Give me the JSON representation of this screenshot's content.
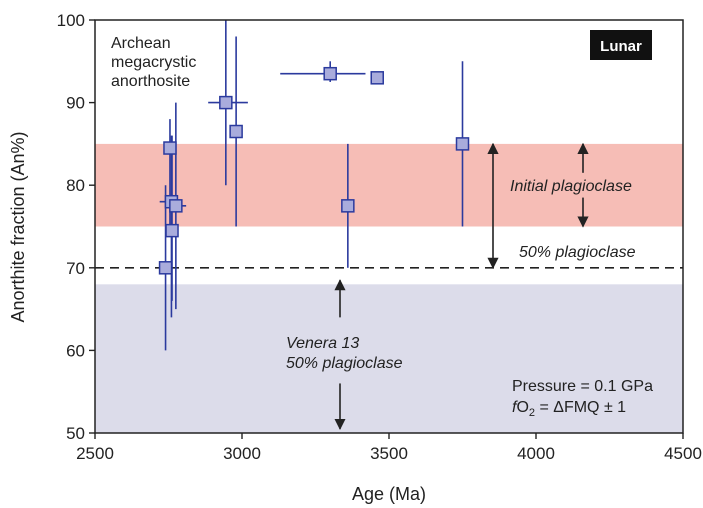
{
  "chart_data": {
    "type": "scatter",
    "xlabel": "Age (Ma)",
    "ylabel": "Anorthite fraction (An%)",
    "xlim": [
      2500,
      4500
    ],
    "ylim": [
      50,
      100
    ],
    "xticks": [
      "2500",
      "3000",
      "3500",
      "4000",
      "4500"
    ],
    "yticks": [
      "50",
      "60",
      "70",
      "80",
      "90",
      "100"
    ],
    "grid": false,
    "badge": "Lunar",
    "bands": [
      {
        "name": "Initial plagioclase",
        "y0": 75,
        "y1": 85,
        "color": "#f6bdb6"
      },
      {
        "name": "Venera 13 50% plagioclase",
        "y0": 50,
        "y1": 68,
        "color": "#dcdcea"
      }
    ],
    "dashed_line": {
      "y": 70,
      "label": "50% plagioclase"
    },
    "annotations": {
      "archean": [
        "Archean",
        "megacrystic",
        "anorthosite"
      ],
      "initial": "Initial plagioclase",
      "fifty": "50% plagioclase",
      "venera": [
        "Venera 13",
        "50% plagioclase"
      ],
      "pressure": "Pressure = 0.1 GPa",
      "fo2_f": "f",
      "fo2_o": "O",
      "fo2_sub": "2",
      "fo2_rest": " = ΔFMQ ± 1"
    },
    "colors": {
      "marker_fill": "#a9acdc",
      "marker_edge": "#2b3a9e",
      "error": "#2b3a9e"
    },
    "points": [
      {
        "x": 2740,
        "y": 70,
        "xerr": [
          2740,
          2740
        ],
        "yerr": [
          60,
          80
        ]
      },
      {
        "x": 2755,
        "y": 84.5,
        "xerr": [
          2755,
          2755
        ],
        "yerr": [
          74,
          88
        ]
      },
      {
        "x": 2760,
        "y": 78,
        "xerr": [
          2720,
          2795
        ],
        "yerr": [
          64,
          86
        ]
      },
      {
        "x": 2762,
        "y": 74.5,
        "xerr": [
          2762,
          2762
        ],
        "yerr": [
          66,
          86
        ]
      },
      {
        "x": 2775,
        "y": 77.5,
        "xerr": [
          2745,
          2810
        ],
        "yerr": [
          65,
          90
        ]
      },
      {
        "x": 2945,
        "y": 90,
        "xerr": [
          2885,
          3020
        ],
        "yerr": [
          80,
          101
        ]
      },
      {
        "x": 2980,
        "y": 86.5,
        "xerr": [
          2980,
          2980
        ],
        "yerr": [
          75,
          98
        ]
      },
      {
        "x": 3300,
        "y": 93.5,
        "xerr": [
          3130,
          3420
        ],
        "yerr": [
          92.5,
          95
        ]
      },
      {
        "x": 3360,
        "y": 77.5,
        "xerr": [
          3360,
          3360
        ],
        "yerr": [
          70,
          85
        ]
      },
      {
        "x": 3460,
        "y": 93,
        "xerr": [
          3440,
          3480
        ],
        "yerr": [
          92.5,
          93.5
        ]
      },
      {
        "x": 3750,
        "y": 85,
        "xerr": [
          3750,
          3750
        ],
        "yerr": [
          75,
          95
        ]
      }
    ]
  }
}
